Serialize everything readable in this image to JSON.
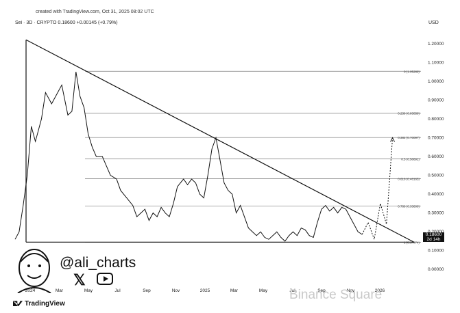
{
  "header": {
    "created": "created with TradingView.com, Oct 31, 2025 08:02 UTC",
    "ticker": "Sei · 3D · CRYPTO  0.18600  +0.00145 (+0.79%)",
    "currency": "USD"
  },
  "last_price": {
    "value": "0.18600",
    "sub": "2d 14h"
  },
  "author": {
    "handle": "@ali_charts",
    "x_icon": "x-icon",
    "youtube_icon": "youtube-icon"
  },
  "footer": {
    "logo": "TradingView",
    "watermark": "Binance Square"
  },
  "colors": {
    "line": "#111111",
    "grid": "#cfcfcf",
    "fib": "#777777",
    "background": "#ffffff"
  },
  "chart_data": {
    "type": "line",
    "ylim": [
      -0.05,
      1.25
    ],
    "y_ticks": [
      "1.20000",
      "1.10000",
      "1.00000",
      "0.90000",
      "0.80000",
      "0.70000",
      "0.60000",
      "0.50000",
      "0.40000",
      "0.30000",
      "0.20000",
      "0.10000",
      "0.00000"
    ],
    "x_ticks": [
      "2024",
      "Mar",
      "May",
      "Jul",
      "Sep",
      "Nov",
      "2025",
      "Mar",
      "May",
      "Jul",
      "Sep",
      "Nov",
      "2026"
    ],
    "fib_levels": [
      {
        "label": "0 (1.05289)",
        "value": 1.05289
      },
      {
        "label": "0.236 (0.83058)",
        "value": 0.83058
      },
      {
        "label": "0.382 (0.70097)",
        "value": 0.70097
      },
      {
        "label": "0.5 (0.58691)",
        "value": 0.58691
      },
      {
        "label": "0.618 (0.48165)",
        "value": 0.48165
      },
      {
        "label": "0.786 (0.33608)",
        "value": 0.33608
      },
      {
        "label": "1 (0.14474)",
        "value": 0.14474
      }
    ],
    "series": [
      {
        "t": [
          0,
          0.02,
          0.04,
          0.06,
          0.08,
          0.1,
          0.11,
          0.13,
          0.15,
          0.18,
          0.2,
          0.23,
          0.26,
          0.28,
          0.3,
          0.32,
          0.34,
          0.36,
          0.38,
          0.4,
          0.43,
          0.45,
          0.47,
          0.5,
          0.52,
          0.55,
          0.58,
          0.6,
          0.62,
          0.64,
          0.66,
          0.68,
          0.7,
          0.72,
          0.74,
          0.76,
          0.78,
          0.8,
          0.83,
          0.85,
          0.87,
          0.89,
          0.91,
          0.93,
          0.95,
          0.97,
          0.99,
          1.01,
          1.03,
          1.05,
          1.07,
          1.09,
          1.11,
          1.13,
          1.15,
          1.17,
          1.19,
          1.21,
          1.23,
          1.25,
          1.27,
          1.29,
          1.31,
          1.33,
          1.35,
          1.37,
          1.39,
          1.41,
          1.43,
          1.45,
          1.47,
          1.49,
          1.51,
          1.53,
          1.55,
          1.57,
          1.59,
          1.61,
          1.63,
          1.65,
          1.67,
          1.69,
          1.71
        ],
        "values": [
          0.16,
          0.2,
          0.34,
          0.5,
          0.76,
          0.68,
          0.72,
          0.8,
          0.94,
          0.88,
          0.92,
          0.98,
          0.82,
          0.84,
          1.05,
          0.92,
          0.86,
          0.72,
          0.65,
          0.6,
          0.6,
          0.55,
          0.5,
          0.48,
          0.42,
          0.38,
          0.34,
          0.28,
          0.3,
          0.32,
          0.26,
          0.3,
          0.28,
          0.33,
          0.3,
          0.28,
          0.35,
          0.44,
          0.48,
          0.45,
          0.48,
          0.46,
          0.4,
          0.38,
          0.5,
          0.64,
          0.7,
          0.58,
          0.46,
          0.42,
          0.4,
          0.3,
          0.34,
          0.28,
          0.22,
          0.2,
          0.18,
          0.2,
          0.17,
          0.16,
          0.18,
          0.2,
          0.17,
          0.15,
          0.18,
          0.2,
          0.18,
          0.22,
          0.21,
          0.18,
          0.17,
          0.25,
          0.32,
          0.34,
          0.31,
          0.33,
          0.3,
          0.33,
          0.32,
          0.28,
          0.24,
          0.2,
          0.186
        ]
      }
    ],
    "projection": {
      "t": [
        1.71,
        1.74,
        1.77,
        1.8,
        1.83,
        1.86
      ],
      "values": [
        0.186,
        0.25,
        0.16,
        0.35,
        0.24,
        0.7
      ]
    },
    "resistance": {
      "t": [
        0,
        1.95
      ],
      "values": [
        1.22,
        0.14474
      ]
    }
  }
}
